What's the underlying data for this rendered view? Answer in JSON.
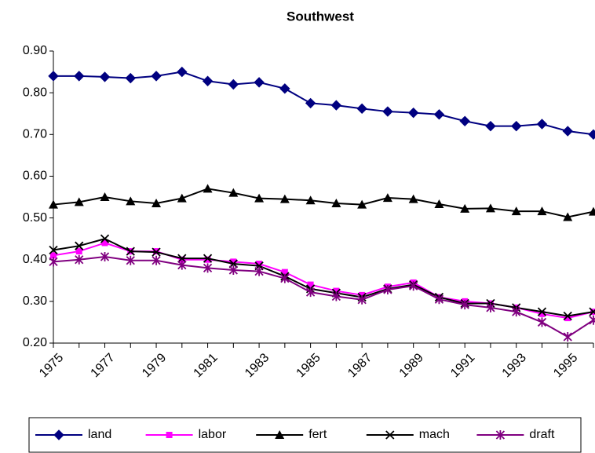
{
  "chart_data": {
    "type": "line",
    "title": "Southwest",
    "categories": [
      "1975",
      null,
      "1977",
      null,
      "1979",
      null,
      "1981",
      null,
      "1983",
      null,
      "1985",
      null,
      "1987",
      null,
      "1989",
      null,
      "1991",
      null,
      "1993",
      null,
      "1995",
      null
    ],
    "series": [
      {
        "name": "land",
        "color": "#000080",
        "marker": "diamond",
        "values": [
          0.84,
          0.84,
          0.838,
          0.835,
          0.84,
          0.85,
          0.828,
          0.82,
          0.825,
          0.81,
          0.775,
          0.77,
          0.762,
          0.755,
          0.752,
          0.748,
          0.732,
          0.72,
          0.72,
          0.725,
          0.708,
          0.7
        ]
      },
      {
        "name": "labor",
        "color": "#ff00ff",
        "marker": "square",
        "values": [
          0.41,
          0.42,
          0.44,
          0.42,
          0.42,
          0.4,
          0.4,
          0.395,
          0.39,
          0.37,
          0.34,
          0.325,
          0.315,
          0.335,
          0.345,
          0.31,
          0.3,
          0.295,
          0.285,
          0.27,
          0.26,
          0.275
        ]
      },
      {
        "name": "fert",
        "color": "#000000",
        "marker": "triangle",
        "values": [
          0.532,
          0.538,
          0.55,
          0.54,
          0.535,
          0.547,
          0.57,
          0.56,
          0.547,
          0.545,
          0.542,
          0.535,
          0.532,
          0.548,
          0.545,
          0.533,
          0.522,
          0.523,
          0.516,
          0.516,
          0.502,
          0.515
        ]
      },
      {
        "name": "mach",
        "color": "#000000",
        "marker": "x",
        "values": [
          0.423,
          0.433,
          0.45,
          0.42,
          0.418,
          0.403,
          0.403,
          0.39,
          0.385,
          0.36,
          0.33,
          0.32,
          0.31,
          0.33,
          0.34,
          0.31,
          0.295,
          0.295,
          0.285,
          0.275,
          0.265,
          0.275
        ]
      },
      {
        "name": "draft",
        "color": "#800080",
        "marker": "star",
        "values": [
          0.395,
          0.4,
          0.407,
          0.398,
          0.398,
          0.387,
          0.38,
          0.375,
          0.372,
          0.355,
          0.322,
          0.312,
          0.304,
          0.328,
          0.337,
          0.305,
          0.292,
          0.285,
          0.275,
          0.25,
          0.215,
          0.255
        ]
      }
    ],
    "ylim": [
      0.2,
      0.9
    ],
    "yticks": [
      {
        "value": 0.2,
        "label": "0.20"
      },
      {
        "value": 0.3,
        "label": "0.30"
      },
      {
        "value": 0.4,
        "label": "0.40"
      },
      {
        "value": 0.5,
        "label": "0.50"
      },
      {
        "value": 0.6,
        "label": "0.60"
      },
      {
        "value": 0.7,
        "label": "0.70"
      },
      {
        "value": 0.8,
        "label": "0.80"
      },
      {
        "value": 0.9,
        "label": "0.90"
      }
    ],
    "grid": false,
    "legend": "bottom"
  }
}
